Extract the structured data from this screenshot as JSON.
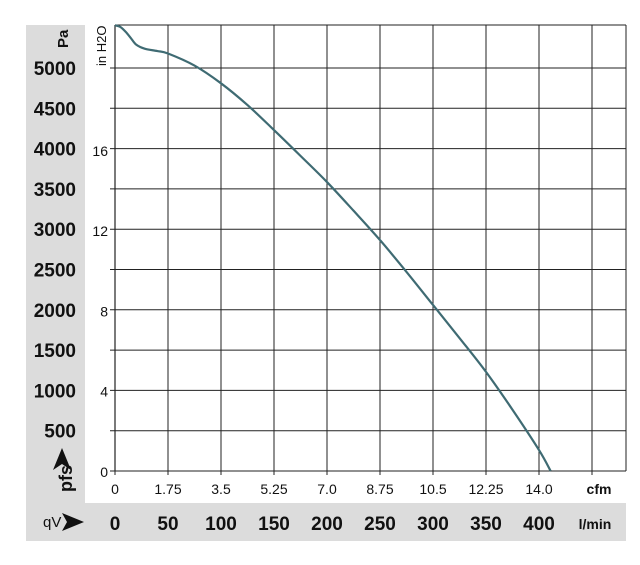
{
  "chart_data": {
    "type": "line",
    "title": "",
    "xlabel": "qV",
    "xunit": "l/min",
    "x2unit": "cfm",
    "ylabel": "pfs",
    "yunit": "Pa",
    "y2unit": "in H2O",
    "xlim": [
      0,
      480
    ],
    "ylim": [
      0,
      5500
    ],
    "grid": true,
    "x_ticks": [
      0,
      50,
      100,
      150,
      200,
      250,
      300,
      350,
      400
    ],
    "x2_ticks": [
      "0",
      "1.75",
      "3.5",
      "5.25",
      "7.0",
      "8.75",
      "10.5",
      "12.25",
      "14.0"
    ],
    "y_ticks": [
      500,
      1000,
      1500,
      2000,
      2500,
      3000,
      3500,
      4000,
      4500,
      5000
    ],
    "y2_ticks": [
      0,
      4,
      8,
      12,
      16
    ],
    "series": [
      {
        "x": [
          0,
          5,
          10,
          15,
          20,
          28,
          40,
          50,
          75,
          100,
          125,
          150,
          175,
          200,
          225,
          250,
          275,
          300,
          325,
          350,
          375,
          400,
          411
        ],
        "y": [
          5530,
          5510,
          5450,
          5370,
          5290,
          5240,
          5210,
          5180,
          5030,
          4810,
          4540,
          4230,
          3910,
          3585,
          3230,
          2865,
          2470,
          2060,
          1650,
          1230,
          760,
          260,
          0
        ],
        "color": "#3f6b73"
      }
    ]
  }
}
